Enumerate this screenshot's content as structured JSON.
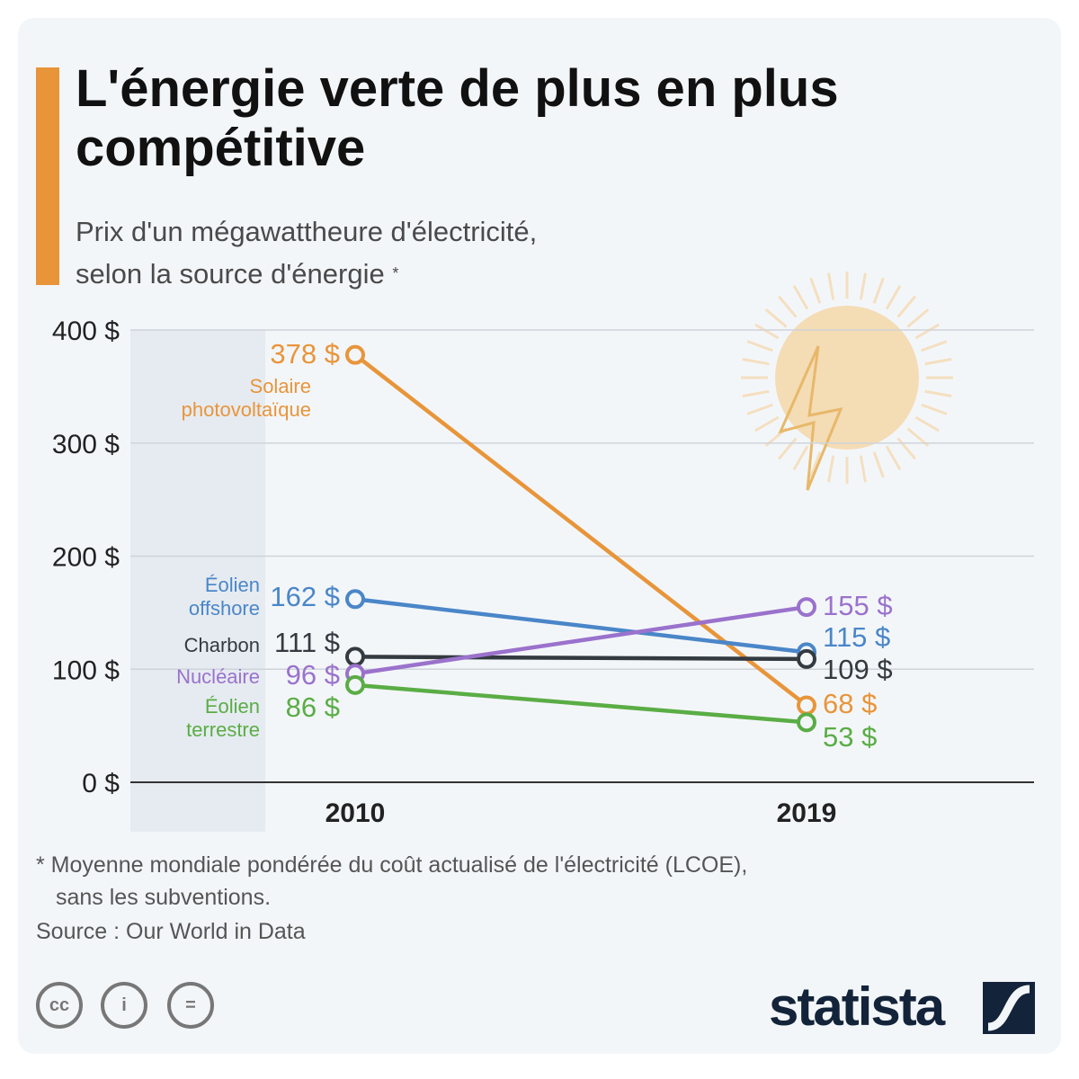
{
  "header": {
    "title": "L'énergie verte de plus en plus compétitive",
    "subtitle_line1": "Prix d'un mégawattheure d'électricité,",
    "subtitle_line2": "selon la source d'énergie",
    "subtitle_marker": "*"
  },
  "chart_data": {
    "type": "line",
    "x": [
      "2010",
      "2019"
    ],
    "ylim": [
      0,
      400
    ],
    "yticks": [
      "0 $",
      "100 $",
      "200 $",
      "300 $",
      "400 $"
    ],
    "ytick_values": [
      0,
      100,
      200,
      300,
      400
    ],
    "grid": true,
    "series": [
      {
        "name": "Solaire photovoltaïque",
        "name_lines": [
          "Solaire",
          "photovoltaïque"
        ],
        "values": [
          378,
          68
        ],
        "labels": [
          "378 $",
          "68 $"
        ],
        "color": "#e8953a"
      },
      {
        "name": "Éolien offshore",
        "name_lines": [
          "Éolien",
          "offshore"
        ],
        "values": [
          162,
          115
        ],
        "labels": [
          "162 $",
          "115 $"
        ],
        "color": "#4a86c8"
      },
      {
        "name": "Charbon",
        "name_lines": [
          "Charbon"
        ],
        "values": [
          111,
          109
        ],
        "labels": [
          "111 $",
          "109 $"
        ],
        "color": "#333a40"
      },
      {
        "name": "Nucléaire",
        "name_lines": [
          "Nucléaire"
        ],
        "values": [
          96,
          155
        ],
        "labels": [
          "96 $",
          "155 $"
        ],
        "color": "#9a72cc"
      },
      {
        "name": "Éolien terrestre",
        "name_lines": [
          "Éolien",
          "terrestre"
        ],
        "values": [
          86,
          53
        ],
        "labels": [
          "86 $",
          "53 $"
        ],
        "color": "#5aad45"
      }
    ]
  },
  "footer": {
    "note_line1": "* Moyenne mondiale pondérée du coût actualisé de l'électricité (LCOE),",
    "note_line2": "sans les subventions.",
    "source": "Source : Our World in Data",
    "license_icons": [
      "cc",
      "by",
      "nd"
    ],
    "license_text": {
      "cc": "cc",
      "by": "i",
      "nd": "="
    },
    "brand": "statista"
  }
}
